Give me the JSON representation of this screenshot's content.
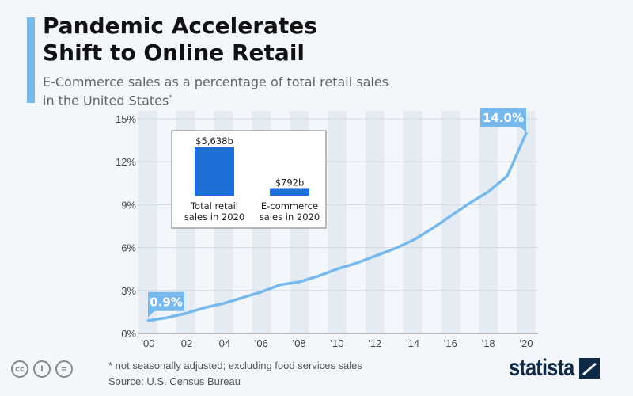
{
  "header": {
    "title_line1": "Pandemic Accelerates",
    "title_line2": "Shift to Online Retail",
    "subtitle_line1": "E-Commerce sales as a percentage of total retail sales",
    "subtitle_line2": "in the United States",
    "subtitle_mark": "*"
  },
  "chart_data": [
    {
      "type": "line",
      "x": [
        2000,
        2001,
        2002,
        2003,
        2004,
        2005,
        2006,
        2007,
        2008,
        2009,
        2010,
        2011,
        2012,
        2013,
        2014,
        2015,
        2016,
        2017,
        2018,
        2019,
        2020
      ],
      "series": [
        {
          "values": [
            0.9,
            1.1,
            1.4,
            1.8,
            2.1,
            2.5,
            2.9,
            3.4,
            3.6,
            4.0,
            4.5,
            4.9,
            5.4,
            5.9,
            6.5,
            7.3,
            8.2,
            9.1,
            9.9,
            11.0,
            14.0
          ],
          "color": "#77b9ed"
        }
      ],
      "x_tick_labels": [
        "'00",
        "'02",
        "'04",
        "'06",
        "'08",
        "'10",
        "'12",
        "'14",
        "'16",
        "'18",
        "'20"
      ],
      "y_tick_labels": [
        "0%",
        "3%",
        "6%",
        "9%",
        "12%",
        "15%"
      ],
      "ylim": [
        0,
        15
      ],
      "grid": true,
      "annotations": [
        {
          "x": 2000,
          "label": "0.9%"
        },
        {
          "x": 2020,
          "label": "14.0%"
        }
      ]
    },
    {
      "type": "bar",
      "categories": [
        "Total retail sales in 2020",
        "E-commerce sales in 2020"
      ],
      "category_lines": [
        [
          "Total retail",
          "sales in 2020"
        ],
        [
          "E-commerce",
          "sales in 2020"
        ]
      ],
      "values": [
        5638,
        792
      ],
      "value_labels": [
        "$5,638b",
        "$792b"
      ],
      "color": "#1f6fd8"
    }
  ],
  "footer": {
    "note": "* not seasonally adjusted; excluding food services sales",
    "source": "Source: U.S. Census Bureau",
    "license_icons": [
      "cc-icon",
      "attribution-icon",
      "no-derivatives-icon"
    ],
    "logo": "statista"
  }
}
